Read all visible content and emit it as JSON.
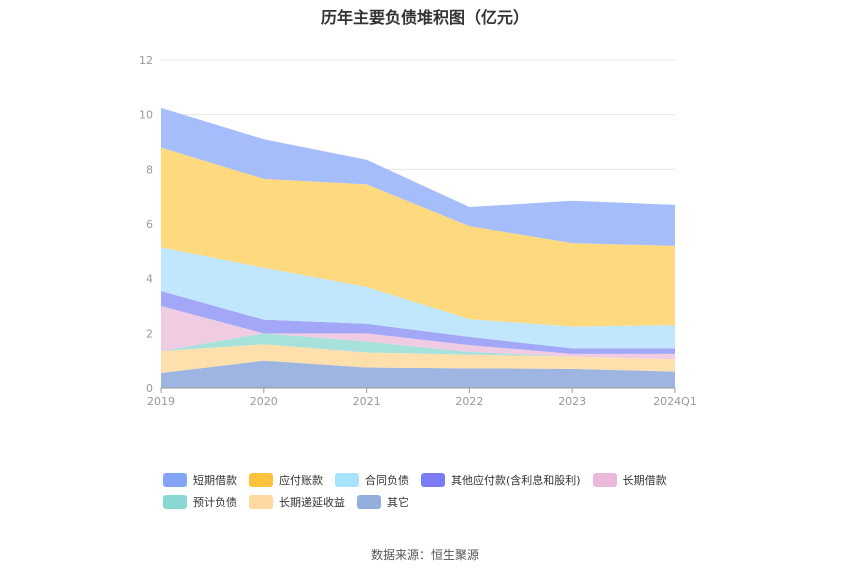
{
  "chart_data": {
    "type": "area",
    "stacked": true,
    "title": "历年主要负债堆积图（亿元）",
    "categories": [
      "2019",
      "2020",
      "2021",
      "2022",
      "2023",
      "2024Q1"
    ],
    "ylim": [
      0,
      12
    ],
    "yticks": [
      "0",
      "2",
      "4",
      "6",
      "8",
      "10",
      "12"
    ],
    "grid": true,
    "legend_position": "bottom",
    "series": [
      {
        "name": "其它",
        "color": "#9db5e0",
        "values": [
          0.55,
          1.0,
          0.75,
          0.72,
          0.7,
          0.6
        ]
      },
      {
        "name": "长期递延收益",
        "color": "#ffe0ad",
        "values": [
          0.8,
          0.6,
          0.55,
          0.5,
          0.45,
          0.45
        ]
      },
      {
        "name": "预计负债",
        "color": "#a6e1dc",
        "values": [
          0.0,
          0.4,
          0.4,
          0.1,
          0.0,
          0.0
        ]
      },
      {
        "name": "长期借款",
        "color": "#f0cce2",
        "values": [
          1.65,
          0.0,
          0.3,
          0.25,
          0.1,
          0.2
        ]
      },
      {
        "name": "其他应付款(含利息和股利)",
        "color": "#a3a7f7",
        "values": [
          0.55,
          0.5,
          0.35,
          0.3,
          0.2,
          0.2
        ]
      },
      {
        "name": "合同负债",
        "color": "#c0e7fd",
        "values": [
          1.6,
          1.9,
          1.35,
          0.65,
          0.8,
          0.85
        ]
      },
      {
        "name": "应付账款",
        "color": "#ffd97d",
        "values": [
          3.65,
          3.25,
          3.75,
          3.4,
          3.05,
          2.9
        ]
      },
      {
        "name": "短期借款",
        "color": "#a6bdfb",
        "values": [
          1.45,
          1.45,
          0.9,
          0.7,
          1.55,
          1.5
        ]
      }
    ],
    "legend": [
      {
        "name": "短期借款",
        "color": "#83a5f9"
      },
      {
        "name": "应付账款",
        "color": "#fdc33c"
      },
      {
        "name": "合同负债",
        "color": "#a6e3fd"
      },
      {
        "name": "其他应付款(含利息和股利)",
        "color": "#7b7cf5"
      },
      {
        "name": "长期借款",
        "color": "#e9b8da"
      },
      {
        "name": "预计负债",
        "color": "#8ad8d3"
      },
      {
        "name": "长期递延收益",
        "color": "#ffd9a0"
      },
      {
        "name": "其它",
        "color": "#94aedd"
      }
    ]
  },
  "source_note": "数据来源：恒生聚源"
}
